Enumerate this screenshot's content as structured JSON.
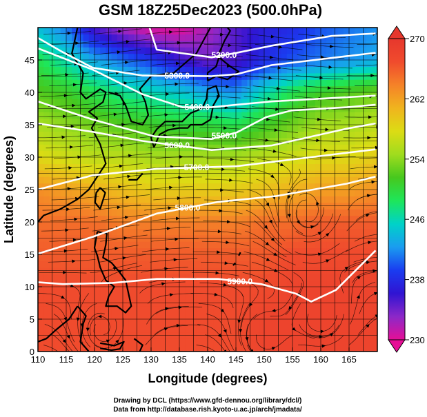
{
  "chart_data": {
    "type": "heatmap",
    "title": "GSM 18Z25Dec2023 (500.0hPa)",
    "xlabel": "Longitude (degrees)",
    "ylabel": "Latitude  (degrees)",
    "xlim": [
      110,
      170
    ],
    "ylim": [
      0,
      50
    ],
    "x_ticks": [
      "110",
      "115",
      "120",
      "125",
      "130",
      "135",
      "140",
      "145",
      "150",
      "155",
      "160",
      "165"
    ],
    "y_ticks": [
      "0",
      "5",
      "10",
      "15",
      "20",
      "25",
      "30",
      "35",
      "40",
      "45"
    ],
    "colorbar": {
      "ticks": [
        "230",
        "238",
        "246",
        "254",
        "262",
        "270"
      ],
      "vmin": 230,
      "vmax": 270,
      "colors": [
        "#e60f96",
        "#8c28c8",
        "#3014d2",
        "#1a3cf0",
        "#1a9cf0",
        "#00d2c8",
        "#1ee65a",
        "#46c81e",
        "#a0dc1e",
        "#dcdc14",
        "#f0b41e",
        "#f58228",
        "#f04b2d",
        "#e6372d"
      ]
    },
    "temperature_field_K": [
      {
        "lat": 50,
        "values": [
          244,
          241,
          235,
          232,
          230,
          230,
          232,
          235,
          237,
          238,
          240,
          241,
          242
        ]
      },
      {
        "lat": 45,
        "values": [
          249,
          246,
          243,
          241,
          239,
          236,
          234,
          235,
          238,
          240,
          241,
          242,
          243
        ]
      },
      {
        "lat": 40,
        "values": [
          252,
          251,
          249,
          247,
          246,
          245,
          243,
          242,
          246,
          249,
          251,
          252,
          253
        ]
      },
      {
        "lat": 35,
        "values": [
          255,
          254,
          253,
          252,
          251,
          250,
          250,
          249,
          251,
          253,
          255,
          255,
          256
        ]
      },
      {
        "lat": 30,
        "values": [
          258,
          257,
          256,
          256,
          255,
          255,
          255,
          255,
          256,
          257,
          258,
          258,
          259
        ]
      },
      {
        "lat": 25,
        "values": [
          263,
          262,
          261,
          260,
          259,
          259,
          259,
          259,
          260,
          261,
          262,
          262,
          263
        ]
      },
      {
        "lat": 20,
        "values": [
          265,
          265,
          265,
          264,
          264,
          264,
          264,
          264,
          265,
          265,
          266,
          266,
          266
        ]
      },
      {
        "lat": 15,
        "values": [
          266,
          266,
          266,
          266,
          266,
          266,
          266,
          266,
          266,
          267,
          267,
          267,
          267
        ]
      },
      {
        "lat": 10,
        "values": [
          267,
          267,
          267,
          267,
          267,
          267,
          267,
          267,
          267,
          268,
          268,
          268,
          268
        ]
      },
      {
        "lat": 5,
        "values": [
          267,
          267,
          267,
          267,
          267,
          267,
          267,
          267,
          268,
          268,
          268,
          268,
          268
        ]
      },
      {
        "lat": 0,
        "values": [
          267,
          267,
          267,
          267,
          267,
          267,
          267,
          267,
          268,
          268,
          268,
          268,
          268
        ]
      }
    ],
    "height_contours_m": [
      {
        "label": "5200.0",
        "points": [
          [
            129.7,
            50.1
          ],
          [
            131.0,
            46.6
          ],
          [
            140.7,
            45.4
          ],
          [
            145.1,
            46.1
          ],
          [
            151.3,
            47.2
          ],
          [
            161.9,
            48.7
          ],
          [
            169.7,
            49.1
          ]
        ]
      },
      {
        "label": "5300.0",
        "points": [
          [
            110.0,
            48.4
          ],
          [
            114.4,
            46.2
          ],
          [
            119.7,
            43.8
          ],
          [
            128.5,
            42.6
          ],
          [
            140.7,
            42.5
          ],
          [
            145.1,
            42.8
          ],
          [
            151.3,
            44.2
          ],
          [
            164.6,
            45.6
          ],
          [
            169.7,
            46.1
          ]
        ]
      },
      {
        "label": "5400.0",
        "points": [
          [
            110.0,
            46.8
          ],
          [
            119.7,
            43.5
          ],
          [
            128.5,
            39.7
          ],
          [
            135.6,
            37.7
          ],
          [
            140.7,
            37.7
          ],
          [
            145.1,
            38.1
          ],
          [
            151.3,
            38.6
          ],
          [
            169.7,
            39.5
          ]
        ]
      },
      {
        "label": "5500.0",
        "points": [
          [
            110.0,
            38.6
          ],
          [
            119.7,
            35.8
          ],
          [
            130.6,
            33.2
          ],
          [
            140.7,
            32.8
          ],
          [
            145.1,
            33.8
          ],
          [
            150.4,
            36.2
          ],
          [
            154.8,
            37.2
          ],
          [
            164.6,
            37.7
          ],
          [
            169.7,
            38.1
          ]
        ]
      },
      {
        "label": "5600.0",
        "points": [
          [
            110.0,
            35.2
          ],
          [
            119.7,
            33.9
          ],
          [
            128.5,
            32.5
          ],
          [
            140.7,
            31.1
          ],
          [
            151.3,
            31.8
          ],
          [
            164.6,
            34.4
          ],
          [
            169.7,
            35.2
          ]
        ]
      },
      {
        "label": "5700.0",
        "points": [
          [
            110.0,
            25.0
          ],
          [
            119.7,
            27.2
          ],
          [
            131.0,
            28.2
          ],
          [
            145.1,
            28.6
          ],
          [
            158.3,
            30.0
          ],
          [
            169.7,
            31.2
          ]
        ]
      },
      {
        "label": "5800.0",
        "points": [
          [
            110.0,
            15.1
          ],
          [
            119.7,
            17.7
          ],
          [
            131.0,
            21.3
          ],
          [
            141.9,
            23.1
          ],
          [
            152.2,
            24.0
          ],
          [
            164.6,
            25.9
          ],
          [
            169.7,
            27.0
          ]
        ]
      },
      {
        "label": "5900.0",
        "points": [
          [
            110.0,
            10.7
          ],
          [
            114.4,
            10.4
          ],
          [
            123.2,
            10.6
          ],
          [
            131.0,
            11.2
          ],
          [
            141.9,
            11.2
          ],
          [
            149.5,
            10.4
          ],
          [
            155.7,
            8.9
          ],
          [
            158.3,
            7.7
          ],
          [
            162.7,
            9.5
          ],
          [
            169.7,
            15.6
          ]
        ]
      }
    ],
    "vortex_centers_deg": [
      {
        "lon": 157.5,
        "lat": 20.5
      },
      {
        "lon": 160.0,
        "lat": 4.5
      },
      {
        "lon": 121.5,
        "lat": 2.5
      },
      {
        "lon": 150.0,
        "lat": 1.5
      }
    ],
    "coastlines_deg": [
      [
        [
          117.0,
          50.0
        ],
        [
          116.0,
          46.0
        ],
        [
          118.0,
          43.0
        ],
        [
          117.5,
          40.0
        ],
        [
          118.5,
          39.0
        ],
        [
          121.0,
          40.5
        ],
        [
          122.0,
          40.0
        ],
        [
          121.5,
          38.5
        ],
        [
          119.0,
          37.0
        ],
        [
          120.5,
          36.0
        ],
        [
          119.5,
          34.5
        ],
        [
          121.0,
          32.0
        ],
        [
          121.5,
          30.5
        ],
        [
          122.0,
          29.0
        ],
        [
          120.5,
          27.0
        ],
        [
          119.0,
          25.0
        ],
        [
          117.0,
          23.5
        ],
        [
          114.0,
          22.0
        ],
        [
          111.0,
          21.0
        ],
        [
          110.0,
          20.0
        ]
      ],
      [
        [
          122.5,
          40.0
        ],
        [
          124.5,
          39.5
        ],
        [
          125.5,
          38.0
        ],
        [
          126.5,
          35.5
        ],
        [
          128.5,
          35.0
        ],
        [
          129.5,
          36.5
        ],
        [
          129.0,
          38.5
        ],
        [
          128.0,
          40.5
        ],
        [
          130.0,
          42.5
        ],
        [
          134.0,
          43.0
        ],
        [
          138.0,
          46.0
        ],
        [
          140.5,
          50.0
        ]
      ],
      [
        [
          130.5,
          31.5
        ],
        [
          131.5,
          33.5
        ],
        [
          133.0,
          34.2
        ],
        [
          135.0,
          34.5
        ],
        [
          136.5,
          34.5
        ],
        [
          137.0,
          35.0
        ],
        [
          139.0,
          35.0
        ],
        [
          140.5,
          35.8
        ],
        [
          141.0,
          38.0
        ],
        [
          142.0,
          39.5
        ],
        [
          141.5,
          41.0
        ],
        [
          140.0,
          40.5
        ],
        [
          139.8,
          39.0
        ],
        [
          139.0,
          37.5
        ],
        [
          137.0,
          36.8
        ],
        [
          135.5,
          35.5
        ],
        [
          132.5,
          35.5
        ],
        [
          131.0,
          34.3
        ],
        [
          130.0,
          33.0
        ],
        [
          130.5,
          31.5
        ]
      ],
      [
        [
          140.0,
          41.8
        ],
        [
          141.5,
          42.5
        ],
        [
          143.5,
          42.0
        ],
        [
          145.5,
          43.2
        ],
        [
          144.0,
          44.0
        ],
        [
          142.0,
          45.4
        ],
        [
          141.5,
          44.0
        ],
        [
          140.0,
          43.0
        ],
        [
          140.0,
          41.8
        ]
      ],
      [
        [
          142.0,
          46.0
        ],
        [
          143.0,
          48.0
        ],
        [
          144.0,
          49.5
        ],
        [
          143.5,
          50.0
        ]
      ],
      [
        [
          121.0,
          25.3
        ],
        [
          121.9,
          24.5
        ],
        [
          121.0,
          22.0
        ],
        [
          120.1,
          23.0
        ],
        [
          120.3,
          24.5
        ],
        [
          121.0,
          25.3
        ]
      ],
      [
        [
          120.5,
          18.5
        ],
        [
          122.2,
          18.2
        ],
        [
          122.0,
          16.5
        ],
        [
          121.5,
          14.5
        ],
        [
          123.0,
          13.7
        ],
        [
          124.2,
          12.5
        ],
        [
          125.5,
          11.0
        ],
        [
          126.0,
          9.0
        ],
        [
          126.5,
          7.0
        ],
        [
          125.5,
          6.0
        ],
        [
          124.0,
          7.0
        ],
        [
          122.0,
          7.0
        ],
        [
          122.5,
          8.5
        ],
        [
          123.5,
          10.0
        ],
        [
          122.0,
          11.0
        ],
        [
          121.0,
          13.0
        ],
        [
          120.5,
          14.8
        ],
        [
          120.0,
          16.0
        ],
        [
          120.5,
          18.5
        ]
      ],
      [
        [
          117.0,
          7.0
        ],
        [
          118.5,
          5.5
        ],
        [
          118.0,
          4.3
        ],
        [
          117.5,
          1.5
        ],
        [
          118.5,
          0.5
        ],
        [
          119.0,
          0.0
        ]
      ],
      [
        [
          110.0,
          1.5
        ],
        [
          111.5,
          2.0
        ],
        [
          113.0,
          3.2
        ],
        [
          115.5,
          5.0
        ],
        [
          117.0,
          7.0
        ]
      ],
      [
        [
          121.0,
          1.3
        ],
        [
          123.5,
          0.9
        ],
        [
          125.2,
          1.5
        ],
        [
          124.5,
          0.4
        ],
        [
          123.0,
          0.2
        ],
        [
          121.0,
          0.5
        ]
      ],
      [
        [
          127.0,
          2.0
        ],
        [
          128.5,
          1.0
        ],
        [
          128.0,
          0.0
        ]
      ],
      [
        [
          126.0,
          26.5
        ],
        [
          127.5,
          26.5
        ],
        [
          128.5,
          27.5
        ]
      ],
      [
        [
          144.5,
          13.3
        ],
        [
          144.8,
          13.6
        ],
        [
          144.9,
          13.4
        ]
      ],
      [
        [
          145.5,
          14.8
        ],
        [
          145.8,
          15.3
        ]
      ]
    ]
  },
  "footer": {
    "credit_line1": "Drawing by DCL (https://www.gfd-dennou.org/library/dcl/)",
    "credit_line2": "Data from http://database.rish.kyoto-u.ac.jp/arch/jmadata/"
  }
}
